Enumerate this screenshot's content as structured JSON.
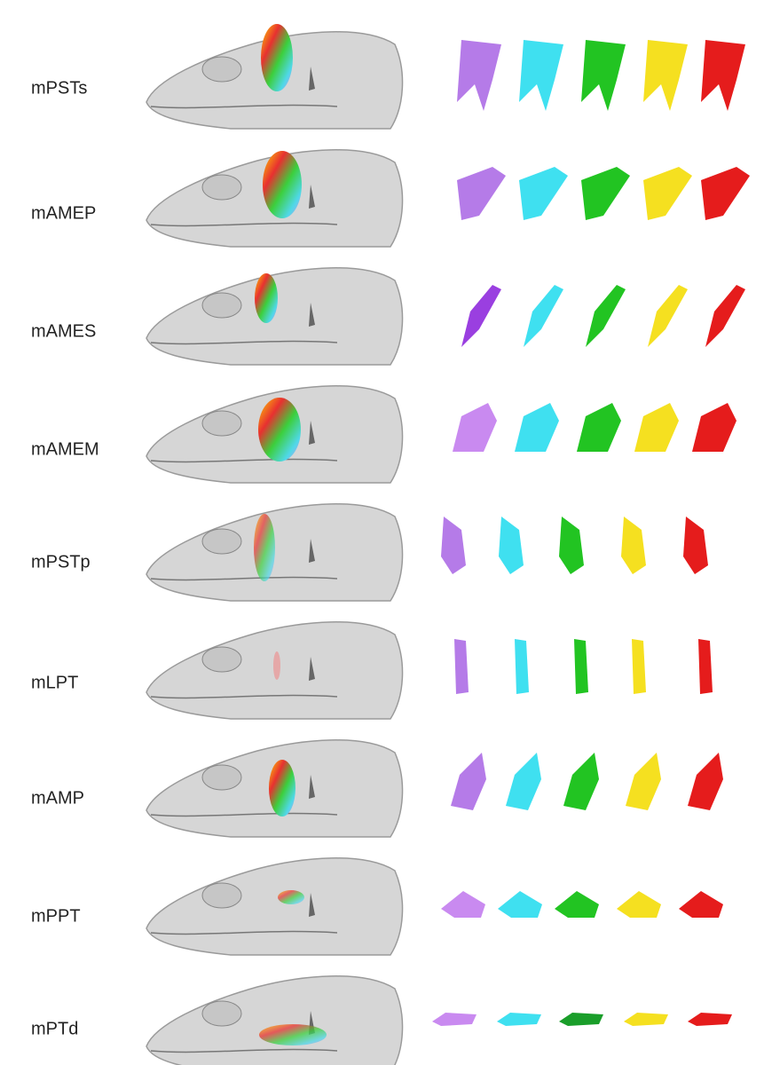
{
  "rows": [
    {
      "label": "mPSTs"
    },
    {
      "label": "mAMEP"
    },
    {
      "label": "mAMES"
    },
    {
      "label": "mAMEM"
    },
    {
      "label": "mPSTp"
    },
    {
      "label": "mLPT"
    },
    {
      "label": "mAMP"
    },
    {
      "label": "mPPT"
    },
    {
      "label": "mPTd"
    }
  ]
}
